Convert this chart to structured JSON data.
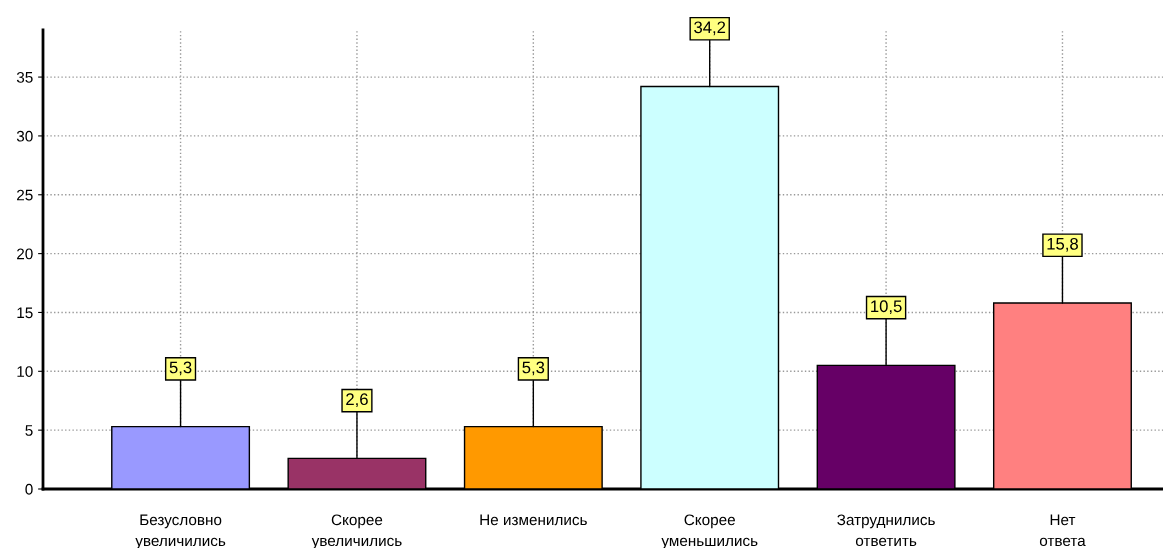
{
  "chart_data": {
    "type": "bar",
    "categories": [
      "Безусловно\nувеличились",
      "Скорее\nувеличились",
      "Не изменились",
      "Скорее\nуменьшились",
      "Затруднились\nответить",
      "Нет\nответа"
    ],
    "values": [
      5.3,
      2.6,
      5.3,
      34.2,
      10.5,
      15.8
    ],
    "value_labels": [
      "5,3",
      "2,6",
      "5,3",
      "34,2",
      "10,5",
      "15,8"
    ],
    "colors": [
      "#9999ff",
      "#993366",
      "#ff9900",
      "#ccffff",
      "#660066",
      "#ff8080"
    ],
    "ylim": [
      0,
      39
    ],
    "yticks": [
      0,
      5,
      10,
      15,
      20,
      25,
      30,
      35
    ],
    "grid": true
  }
}
